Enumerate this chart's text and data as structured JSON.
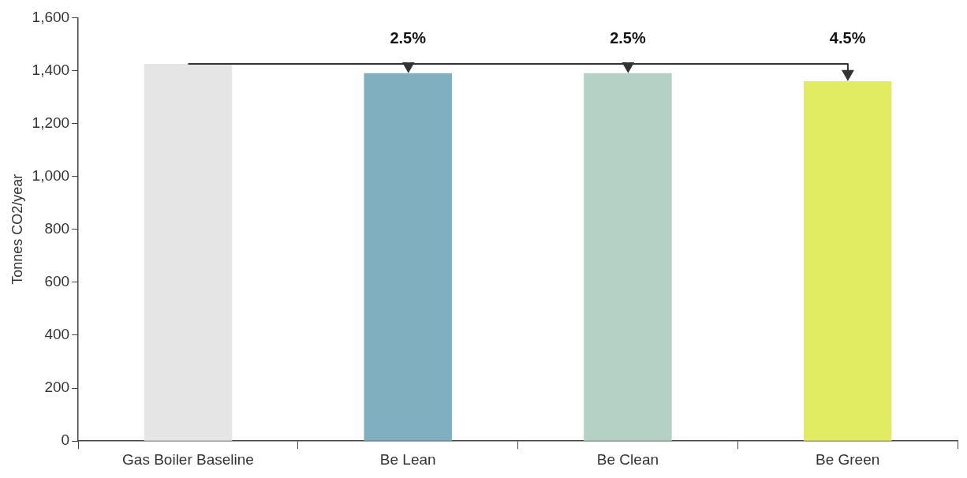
{
  "chart_data": {
    "type": "bar",
    "ylabel": "Tonnes CO2/year",
    "categories": [
      "Gas Boiler Baseline",
      "Be Lean",
      "Be Clean",
      "Be Green"
    ],
    "values": [
      1425,
      1390,
      1390,
      1360
    ],
    "colors": [
      "#e5e5e5",
      "#80afbf",
      "#b5d1c6",
      "#e2ec63"
    ],
    "ylim": [
      0,
      1600
    ],
    "yticks": [
      {
        "value": 0,
        "label": "0"
      },
      {
        "value": 200,
        "label": "200"
      },
      {
        "value": 400,
        "label": "400"
      },
      {
        "value": 600,
        "label": "600"
      },
      {
        "value": 800,
        "label": "800"
      },
      {
        "value": 1000,
        "label": "1,000"
      },
      {
        "value": 1200,
        "label": "1,200"
      },
      {
        "value": 1400,
        "label": "1,400"
      },
      {
        "value": 1600,
        "label": "1,600"
      }
    ],
    "grid": false,
    "legend": false,
    "ref_lines": [
      {
        "axis": "y",
        "value": 1425,
        "color": "#333333"
      }
    ],
    "annotations": [
      {
        "text": "2.5%",
        "x": "Be Lean",
        "y": 1390
      },
      {
        "text": "2.5%",
        "x": "Be Clean",
        "y": 1390
      },
      {
        "text": "4.5%",
        "x": "Be Green",
        "y": 1360
      }
    ]
  }
}
